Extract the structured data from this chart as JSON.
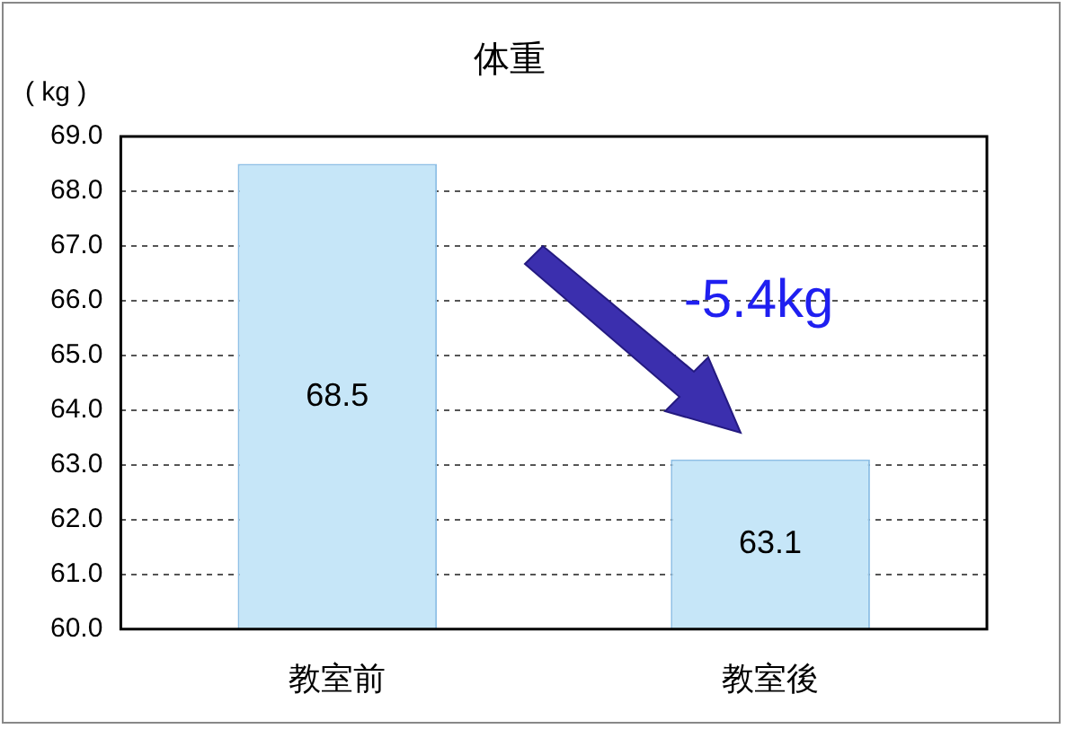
{
  "chart_data": {
    "type": "bar",
    "title": "体重",
    "ylabel": "( kg )",
    "categories": [
      "教室前",
      "教室後"
    ],
    "values": [
      68.5,
      63.1
    ],
    "color": "#c6e6f8",
    "ylim": [
      60,
      69
    ],
    "yticks": [
      {
        "value": 60,
        "label": "60.0"
      },
      {
        "value": 61,
        "label": "61.0"
      },
      {
        "value": 62,
        "label": "62.0"
      },
      {
        "value": 63,
        "label": "63.0"
      },
      {
        "value": 64,
        "label": "64.0"
      },
      {
        "value": 65,
        "label": "65.0"
      },
      {
        "value": 66,
        "label": "66.0"
      },
      {
        "value": 67,
        "label": "67.0"
      },
      {
        "value": 68,
        "label": "68.0"
      },
      {
        "value": 69,
        "label": "69.0"
      }
    ],
    "grid": "y",
    "data_labels": true,
    "legend": false,
    "annotations": [
      "-5.4kg"
    ]
  }
}
